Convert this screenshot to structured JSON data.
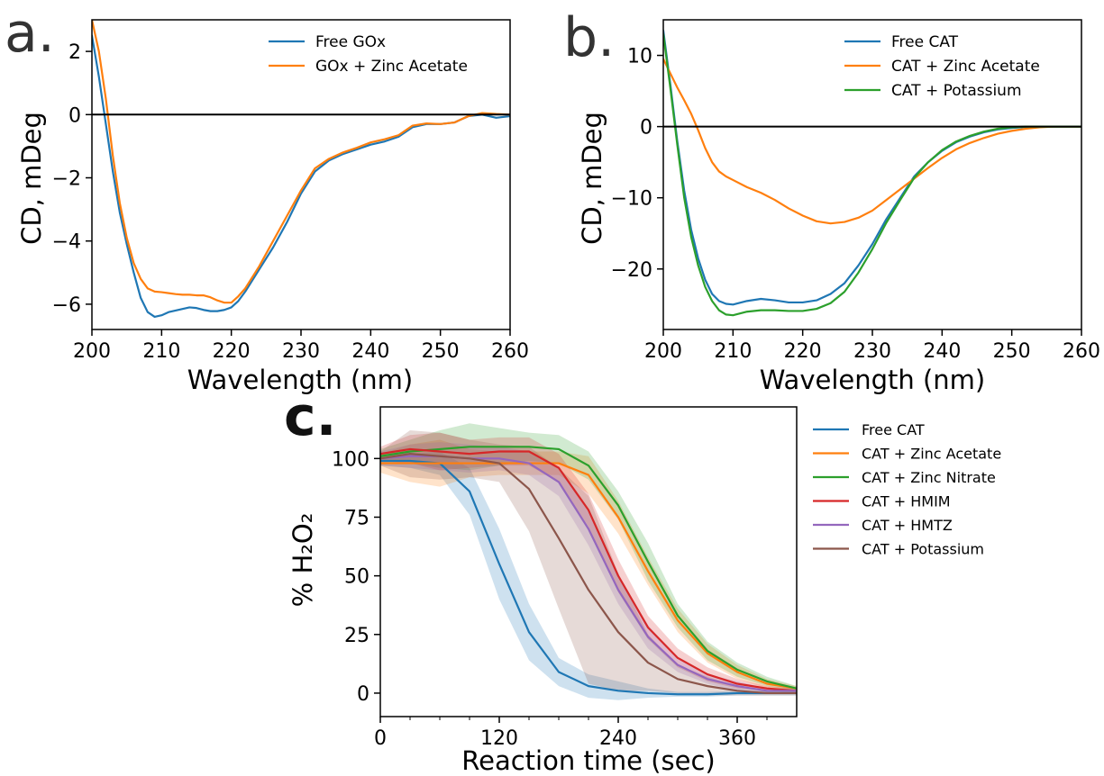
{
  "chart_data": [
    {
      "panel": "a.",
      "type": "line",
      "xlabel": "Wavelength (nm)",
      "ylabel": "CD, mDeg",
      "xlim": [
        200,
        260
      ],
      "ylim": [
        -6.8,
        3.0
      ],
      "xticks": [
        200,
        210,
        220,
        230,
        240,
        250,
        260
      ],
      "yticks": [
        -6,
        -4,
        -2,
        0,
        2
      ],
      "xtick_labels": [
        "200",
        "210",
        "220",
        "230",
        "240",
        "250",
        "260"
      ],
      "ytick_labels": [
        "−6",
        "−4",
        "−2",
        "0",
        "2"
      ],
      "zero_line": true,
      "legend_position": "top-right",
      "series": [
        {
          "name": "Free GOx",
          "color": "#1f77b4",
          "x": [
            200,
            201,
            202,
            203,
            204,
            205,
            206,
            207,
            208,
            209,
            210,
            211,
            212,
            213,
            214,
            215,
            216,
            217,
            218,
            219,
            220,
            221,
            222,
            224,
            226,
            228,
            230,
            232,
            234,
            236,
            238,
            240,
            242,
            244,
            246,
            248,
            250,
            252,
            254,
            256,
            258,
            260
          ],
          "values": [
            2.5,
            1.2,
            -0.3,
            -1.8,
            -3.1,
            -4.1,
            -5.0,
            -5.8,
            -6.25,
            -6.4,
            -6.35,
            -6.25,
            -6.2,
            -6.15,
            -6.1,
            -6.12,
            -6.18,
            -6.22,
            -6.22,
            -6.18,
            -6.1,
            -5.9,
            -5.6,
            -4.9,
            -4.2,
            -3.4,
            -2.5,
            -1.8,
            -1.45,
            -1.25,
            -1.1,
            -0.95,
            -0.85,
            -0.7,
            -0.4,
            -0.3,
            -0.3,
            -0.25,
            -0.05,
            0.0,
            -0.1,
            -0.05
          ]
        },
        {
          "name": "GOx + Zinc Acetate",
          "color": "#ff7f0e",
          "x": [
            200,
            201,
            202,
            203,
            204,
            205,
            206,
            207,
            208,
            209,
            210,
            211,
            212,
            213,
            214,
            215,
            216,
            217,
            218,
            219,
            220,
            221,
            222,
            224,
            226,
            228,
            230,
            232,
            234,
            236,
            238,
            240,
            242,
            244,
            246,
            248,
            250,
            252,
            254,
            256,
            258,
            260
          ],
          "values": [
            3.0,
            2.0,
            0.5,
            -1.3,
            -2.8,
            -3.9,
            -4.7,
            -5.2,
            -5.5,
            -5.6,
            -5.62,
            -5.65,
            -5.68,
            -5.7,
            -5.7,
            -5.72,
            -5.72,
            -5.78,
            -5.88,
            -5.95,
            -5.95,
            -5.75,
            -5.5,
            -4.8,
            -4.0,
            -3.2,
            -2.4,
            -1.7,
            -1.4,
            -1.2,
            -1.05,
            -0.88,
            -0.78,
            -0.65,
            -0.35,
            -0.28,
            -0.3,
            -0.25,
            -0.05,
            0.05,
            0.02,
            0.0
          ]
        }
      ]
    },
    {
      "panel": "b.",
      "type": "line",
      "xlabel": "Wavelength (nm)",
      "ylabel": "CD, mDeg",
      "xlim": [
        200,
        260
      ],
      "ylim": [
        -28.5,
        15
      ],
      "xticks": [
        200,
        210,
        220,
        230,
        240,
        250,
        260
      ],
      "yticks": [
        -20,
        -10,
        0,
        10
      ],
      "xtick_labels": [
        "200",
        "210",
        "220",
        "230",
        "240",
        "250",
        "260"
      ],
      "ytick_labels": [
        "−20",
        "−10",
        "0",
        "10"
      ],
      "zero_line": true,
      "legend_position": "top-right",
      "series": [
        {
          "name": "Free CAT",
          "color": "#1f77b4",
          "x": [
            200,
            201,
            202,
            203,
            204,
            205,
            206,
            207,
            208,
            209,
            210,
            212,
            214,
            216,
            218,
            220,
            222,
            224,
            226,
            228,
            230,
            232,
            234,
            236,
            238,
            240,
            242,
            244,
            246,
            248,
            250,
            252,
            254,
            256,
            258,
            260
          ],
          "values": [
            13.5,
            6.0,
            -2.0,
            -9.0,
            -14.5,
            -18.5,
            -21.5,
            -23.5,
            -24.5,
            -24.9,
            -25.0,
            -24.5,
            -24.2,
            -24.4,
            -24.7,
            -24.7,
            -24.4,
            -23.5,
            -22.0,
            -19.5,
            -16.5,
            -13.0,
            -10.0,
            -7.0,
            -5.0,
            -3.4,
            -2.2,
            -1.4,
            -0.8,
            -0.4,
            -0.2,
            -0.05,
            0.0,
            0.0,
            0.0,
            0.0
          ]
        },
        {
          "name": "CAT + Zinc Acetate",
          "color": "#ff7f0e",
          "x": [
            200,
            201,
            202,
            203,
            204,
            205,
            206,
            207,
            208,
            209,
            210,
            212,
            214,
            216,
            218,
            220,
            222,
            224,
            226,
            228,
            230,
            232,
            234,
            236,
            238,
            240,
            242,
            244,
            246,
            248,
            250,
            252,
            254,
            256,
            258,
            260
          ],
          "values": [
            9.5,
            7.5,
            5.5,
            3.7,
            1.8,
            -0.5,
            -3.0,
            -5.0,
            -6.3,
            -7.0,
            -7.5,
            -8.5,
            -9.3,
            -10.3,
            -11.5,
            -12.5,
            -13.3,
            -13.6,
            -13.4,
            -12.8,
            -11.8,
            -10.3,
            -8.8,
            -7.3,
            -5.8,
            -4.4,
            -3.2,
            -2.3,
            -1.6,
            -1.0,
            -0.6,
            -0.3,
            -0.1,
            0.0,
            0.0,
            0.0
          ]
        },
        {
          "name": "CAT + Potassium",
          "color": "#2ca02c",
          "x": [
            200,
            201,
            202,
            203,
            204,
            205,
            206,
            207,
            208,
            209,
            210,
            212,
            214,
            216,
            218,
            220,
            222,
            224,
            226,
            228,
            230,
            232,
            234,
            236,
            238,
            240,
            242,
            244,
            246,
            248,
            250,
            252,
            254,
            256,
            258,
            260
          ],
          "values": [
            13.0,
            5.5,
            -2.5,
            -10.0,
            -15.5,
            -19.5,
            -22.5,
            -24.5,
            -25.8,
            -26.4,
            -26.5,
            -26.0,
            -25.8,
            -25.8,
            -25.9,
            -25.9,
            -25.6,
            -24.8,
            -23.2,
            -20.5,
            -17.2,
            -13.5,
            -10.3,
            -7.2,
            -5.0,
            -3.3,
            -2.1,
            -1.3,
            -0.7,
            -0.3,
            -0.1,
            0.0,
            0.0,
            0.0,
            0.0,
            0.0
          ]
        }
      ]
    },
    {
      "panel": "c.",
      "type": "line",
      "xlabel": "Reaction time (sec)",
      "ylabel": "% H₂O₂",
      "xlim": [
        0,
        420
      ],
      "ylim": [
        -10,
        122
      ],
      "xticks": [
        0,
        120,
        240,
        360
      ],
      "yticks": [
        0,
        25,
        50,
        75,
        100
      ],
      "xtick_labels": [
        "0",
        "120",
        "240",
        "360"
      ],
      "ytick_labels": [
        "0",
        "25",
        "50",
        "75",
        "100"
      ],
      "shaded_bands": true,
      "legend_position": "outside-right",
      "series": [
        {
          "name": "Free CAT",
          "color": "#1f77b4",
          "x": [
            0,
            30,
            60,
            90,
            120,
            150,
            180,
            210,
            240,
            270,
            300,
            330,
            360,
            390,
            420
          ],
          "values": [
            99,
            99,
            98,
            86,
            55,
            26,
            9,
            3,
            1,
            0,
            -0.5,
            -0.5,
            0,
            0,
            0
          ],
          "band": [
            2,
            3,
            5,
            10,
            15,
            12,
            6,
            5,
            4,
            2,
            1,
            1,
            1,
            1,
            1
          ]
        },
        {
          "name": "CAT + Zinc Acetate",
          "color": "#ff7f0e",
          "x": [
            0,
            30,
            60,
            90,
            120,
            150,
            180,
            210,
            240,
            270,
            300,
            330,
            360,
            390,
            420
          ],
          "values": [
            98,
            98,
            98,
            98,
            98,
            98,
            98,
            93,
            75,
            52,
            31,
            17,
            9,
            4,
            2
          ],
          "band": [
            4,
            8,
            10,
            6,
            5,
            5,
            5,
            8,
            7,
            6,
            5,
            4,
            3,
            2,
            1
          ]
        },
        {
          "name": "CAT + Zinc Nitrate",
          "color": "#2ca02c",
          "x": [
            0,
            30,
            60,
            90,
            120,
            150,
            180,
            210,
            240,
            270,
            300,
            330,
            360,
            390,
            420
          ],
          "values": [
            101,
            103,
            104,
            105,
            105,
            105,
            104,
            97,
            80,
            56,
            33,
            18,
            10,
            5,
            2
          ],
          "band": [
            3,
            5,
            8,
            10,
            8,
            6,
            6,
            6,
            6,
            8,
            5,
            4,
            3,
            2,
            1
          ]
        },
        {
          "name": "CAT + HMIM",
          "color": "#d62728",
          "x": [
            0,
            30,
            60,
            90,
            120,
            150,
            180,
            210,
            240,
            270,
            300,
            330,
            360,
            390,
            420
          ],
          "values": [
            102,
            104,
            103,
            102,
            103,
            103,
            96,
            78,
            50,
            28,
            15,
            8,
            4,
            2,
            1
          ],
          "band": [
            3,
            6,
            8,
            6,
            6,
            6,
            6,
            7,
            7,
            5,
            4,
            3,
            2,
            1,
            1
          ]
        },
        {
          "name": "CAT + HMTZ",
          "color": "#9467bd",
          "x": [
            0,
            30,
            60,
            90,
            120,
            150,
            180,
            210,
            240,
            270,
            300,
            330,
            360,
            390,
            420
          ],
          "values": [
            100,
            101,
            101,
            100,
            100,
            98,
            90,
            70,
            44,
            24,
            12,
            6,
            3,
            1,
            1
          ],
          "band": [
            3,
            5,
            6,
            6,
            5,
            5,
            6,
            7,
            6,
            5,
            3,
            2,
            2,
            1,
            1
          ]
        },
        {
          "name": "CAT + Potassium",
          "color": "#8c564b",
          "x": [
            0,
            30,
            60,
            90,
            120,
            150,
            180,
            210,
            240,
            270,
            300,
            330,
            360,
            390,
            420
          ],
          "values": [
            100,
            102,
            101,
            100,
            98,
            87,
            66,
            44,
            26,
            13,
            6,
            3,
            1,
            0,
            0
          ],
          "band": [
            3,
            10,
            10,
            8,
            8,
            18,
            30,
            40,
            25,
            12,
            6,
            4,
            2,
            1,
            1
          ]
        }
      ]
    }
  ]
}
